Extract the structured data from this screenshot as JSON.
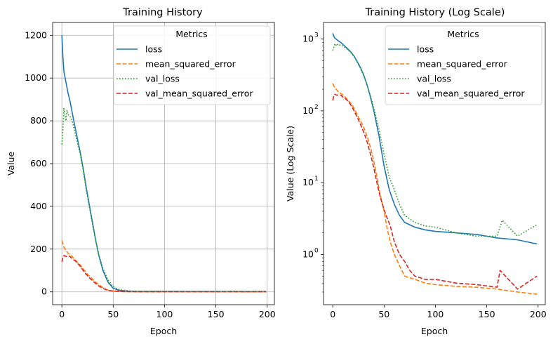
{
  "colors": {
    "loss": "#1f77b4",
    "mean_squared_error": "#ff7f0e",
    "val_loss": "#2ca02c",
    "val_mean_squared_error": "#d62728",
    "grid": "#b0b0b0"
  },
  "chart_data": [
    {
      "type": "line",
      "title": "Training History",
      "xlabel": "Epoch",
      "ylabel": "Value",
      "xlim": [
        -9,
        207
      ],
      "ylim": [
        -60,
        1260
      ],
      "yscale": "linear",
      "grid": true,
      "legend_placement": "top-right",
      "legend_title": "Metrics",
      "xticks": [
        0,
        50,
        100,
        150,
        200
      ],
      "yticks": [
        0,
        200,
        400,
        600,
        800,
        1000,
        1200
      ],
      "series": [
        {
          "name": "loss",
          "style": "solid",
          "x": [
            0,
            1,
            2,
            4,
            6,
            8,
            10,
            12,
            15,
            18,
            21,
            24,
            27,
            30,
            33,
            36,
            40,
            45,
            50,
            55,
            60,
            65,
            70,
            80,
            90,
            100,
            120,
            140,
            160,
            180,
            199
          ],
          "y": [
            1200,
            1100,
            1030,
            980,
            930,
            890,
            840,
            790,
            720,
            650,
            570,
            480,
            400,
            320,
            240,
            170,
            100,
            45,
            17,
            8,
            5,
            3.5,
            2.8,
            2.4,
            2.2,
            2.1,
            2.0,
            1.9,
            1.7,
            1.6,
            1.4
          ]
        },
        {
          "name": "mean_squared_error",
          "style": "dashed",
          "x": [
            0,
            2,
            4,
            6,
            8,
            10,
            13,
            16,
            19,
            22,
            25,
            28,
            31,
            34,
            37,
            40,
            43,
            46,
            50,
            53,
            56,
            60,
            65,
            70,
            80,
            90,
            100,
            120,
            140,
            160,
            180,
            199
          ],
          "y": [
            240,
            210,
            195,
            180,
            175,
            165,
            150,
            135,
            120,
            100,
            82,
            68,
            55,
            42,
            30,
            20,
            12,
            7,
            4,
            2.3,
            1.5,
            1.0,
            0.7,
            0.5,
            0.45,
            0.4,
            0.38,
            0.36,
            0.35,
            0.33,
            0.3,
            0.28
          ]
        },
        {
          "name": "val_loss",
          "style": "dotted",
          "x": [
            0,
            1,
            2,
            3,
            4,
            5,
            6,
            8,
            10,
            12,
            15,
            18,
            21,
            24,
            27,
            30,
            33,
            36,
            40,
            45,
            50,
            55,
            60,
            65,
            70,
            80,
            90,
            100,
            120,
            140,
            160,
            165,
            180,
            199
          ],
          "y": [
            690,
            760,
            860,
            830,
            800,
            850,
            830,
            820,
            800,
            760,
            700,
            640,
            560,
            470,
            390,
            310,
            240,
            175,
            110,
            55,
            25,
            12,
            8,
            5,
            3.5,
            2.8,
            2.5,
            2.4,
            2.0,
            1.8,
            1.8,
            3.0,
            1.8,
            2.6
          ]
        },
        {
          "name": "val_mean_squared_error",
          "style": "dashed",
          "x": [
            0,
            1,
            2,
            4,
            6,
            8,
            10,
            13,
            16,
            19,
            22,
            25,
            28,
            31,
            34,
            37,
            40,
            43,
            46,
            50,
            53,
            56,
            60,
            65,
            70,
            75,
            80,
            90,
            100,
            120,
            140,
            160,
            163,
            180,
            199
          ],
          "y": [
            140,
            160,
            170,
            165,
            168,
            165,
            155,
            145,
            130,
            112,
            92,
            75,
            60,
            47,
            35,
            24,
            16,
            10,
            6.5,
            4.2,
            3.2,
            2.5,
            1.5,
            1.0,
            0.8,
            0.6,
            0.5,
            0.45,
            0.45,
            0.4,
            0.38,
            0.35,
            0.6,
            0.33,
            0.5
          ]
        }
      ]
    },
    {
      "type": "line",
      "title": "Training History (Log Scale)",
      "xlabel": "Epoch",
      "ylabel": "Value (Log Scale)",
      "xlim": [
        -9,
        207
      ],
      "ylim": [
        0.2,
        1700
      ],
      "yscale": "log",
      "grid": false,
      "legend_placement": "top-right",
      "legend_title": "Metrics",
      "xticks": [
        0,
        50,
        100,
        150,
        200
      ],
      "yticks": [
        1,
        10,
        100,
        1000
      ],
      "ytick_labels": [
        "10^0",
        "10^1",
        "10^2",
        "10^3"
      ],
      "series": [
        {
          "name": "loss",
          "style": "solid",
          "x": [
            0,
            1,
            2,
            4,
            6,
            8,
            10,
            12,
            15,
            18,
            21,
            24,
            27,
            30,
            33,
            36,
            40,
            45,
            50,
            55,
            60,
            65,
            70,
            80,
            90,
            100,
            120,
            140,
            160,
            180,
            199
          ],
          "y": [
            1200,
            1100,
            1030,
            980,
            930,
            890,
            840,
            790,
            720,
            650,
            570,
            480,
            400,
            320,
            240,
            170,
            100,
            45,
            17,
            8,
            5,
            3.5,
            2.8,
            2.4,
            2.2,
            2.1,
            2.0,
            1.9,
            1.7,
            1.6,
            1.4
          ]
        },
        {
          "name": "mean_squared_error",
          "style": "dashed",
          "x": [
            0,
            2,
            4,
            6,
            8,
            10,
            13,
            16,
            19,
            22,
            25,
            28,
            31,
            34,
            37,
            40,
            43,
            46,
            50,
            53,
            56,
            60,
            65,
            70,
            80,
            90,
            100,
            120,
            140,
            160,
            180,
            199
          ],
          "y": [
            240,
            210,
            195,
            180,
            175,
            165,
            150,
            135,
            120,
            100,
            82,
            68,
            55,
            42,
            30,
            20,
            12,
            7,
            4,
            2.3,
            1.5,
            1.0,
            0.7,
            0.5,
            0.45,
            0.4,
            0.38,
            0.36,
            0.35,
            0.33,
            0.3,
            0.28
          ]
        },
        {
          "name": "val_loss",
          "style": "dotted",
          "x": [
            0,
            1,
            2,
            3,
            4,
            5,
            6,
            8,
            10,
            12,
            15,
            18,
            21,
            24,
            27,
            30,
            33,
            36,
            40,
            45,
            50,
            55,
            60,
            65,
            70,
            80,
            90,
            100,
            120,
            140,
            160,
            165,
            180,
            199
          ],
          "y": [
            690,
            760,
            860,
            830,
            800,
            850,
            830,
            820,
            800,
            760,
            700,
            640,
            560,
            470,
            390,
            310,
            240,
            175,
            110,
            55,
            25,
            12,
            8,
            5,
            3.5,
            2.8,
            2.5,
            2.4,
            2.0,
            1.8,
            1.8,
            3.0,
            1.8,
            2.6
          ]
        },
        {
          "name": "val_mean_squared_error",
          "style": "dashed",
          "x": [
            0,
            1,
            2,
            4,
            6,
            8,
            10,
            13,
            16,
            19,
            22,
            25,
            28,
            31,
            34,
            37,
            40,
            43,
            46,
            50,
            53,
            56,
            60,
            65,
            70,
            75,
            80,
            90,
            100,
            120,
            140,
            160,
            163,
            180,
            199
          ],
          "y": [
            140,
            160,
            170,
            165,
            168,
            165,
            155,
            145,
            130,
            112,
            92,
            75,
            60,
            47,
            35,
            24,
            16,
            10,
            6.5,
            4.2,
            3.2,
            2.5,
            1.5,
            1.0,
            0.8,
            0.6,
            0.5,
            0.45,
            0.45,
            0.4,
            0.38,
            0.35,
            0.6,
            0.33,
            0.5
          ]
        }
      ]
    }
  ]
}
